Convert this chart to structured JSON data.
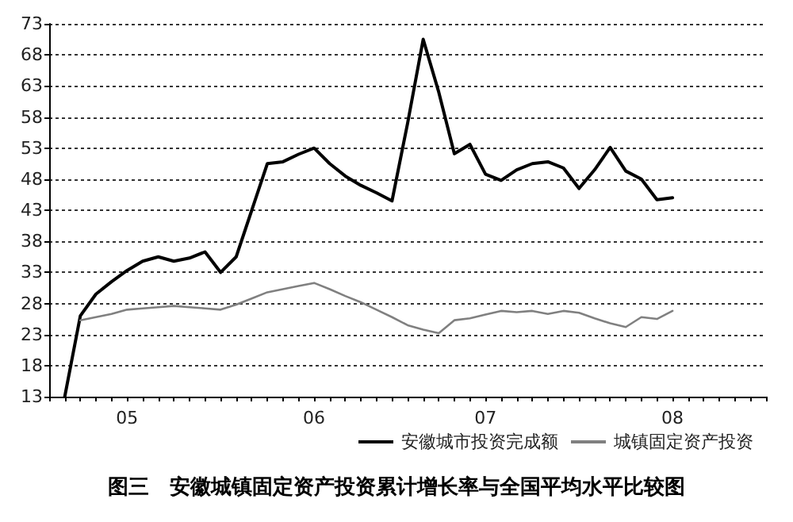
{
  "chart_data": {
    "type": "line",
    "title": "图三　安徽城镇固定资产投资累计增长率与全国平均水平比较图",
    "categories": [
      null,
      null,
      null,
      null,
      null,
      "05",
      null,
      null,
      null,
      null,
      null,
      null,
      null,
      null,
      null,
      null,
      null,
      "06",
      null,
      null,
      null,
      null,
      null,
      null,
      null,
      null,
      null,
      null,
      "07",
      null,
      null,
      null,
      null,
      null,
      null,
      null,
      null,
      null,
      null,
      null,
      "08",
      null,
      null,
      null,
      null,
      null,
      null
    ],
    "series": [
      {
        "name": "安徽城市投资完成额",
        "color": "#000000",
        "values": [
          null,
          13,
          26,
          29.5,
          31.5,
          33.3,
          34.8,
          35.5,
          34.8,
          35.3,
          36.3,
          33,
          35.5,
          43,
          50.5,
          50.8,
          52,
          53,
          50.5,
          48.5,
          47,
          45.8,
          44.5,
          57,
          70.5,
          62,
          52.1,
          53.6,
          48.8,
          47.8,
          49.5,
          50.5,
          50.8,
          49.8,
          46.5,
          49.5,
          53.1,
          49.3,
          48,
          44.7,
          45,
          null,
          null,
          null,
          null,
          null,
          null
        ]
      },
      {
        "name": "城镇固定资产投资",
        "color": "#808080",
        "values": [
          null,
          null,
          25.3,
          25.8,
          26.3,
          27,
          27.2,
          27.4,
          27.6,
          27.4,
          27.2,
          27,
          27.8,
          28.8,
          29.8,
          30.3,
          30.8,
          31.3,
          30.3,
          29.2,
          28.2,
          27,
          25.8,
          24.5,
          23.8,
          23.2,
          25.3,
          25.6,
          26.2,
          26.8,
          26.6,
          26.8,
          26.3,
          26.8,
          26.5,
          25.6,
          24.8,
          24.2,
          25.8,
          25.5,
          26.8,
          null,
          null,
          null,
          null,
          null,
          null
        ]
      }
    ],
    "ylim": [
      13,
      73
    ],
    "yticks": [
      13,
      18,
      23,
      28,
      33,
      38,
      43,
      48,
      53,
      58,
      63,
      68,
      73
    ],
    "grid": "y",
    "legend": "bottom right",
    "marker": "none",
    "line_style": "solid"
  }
}
